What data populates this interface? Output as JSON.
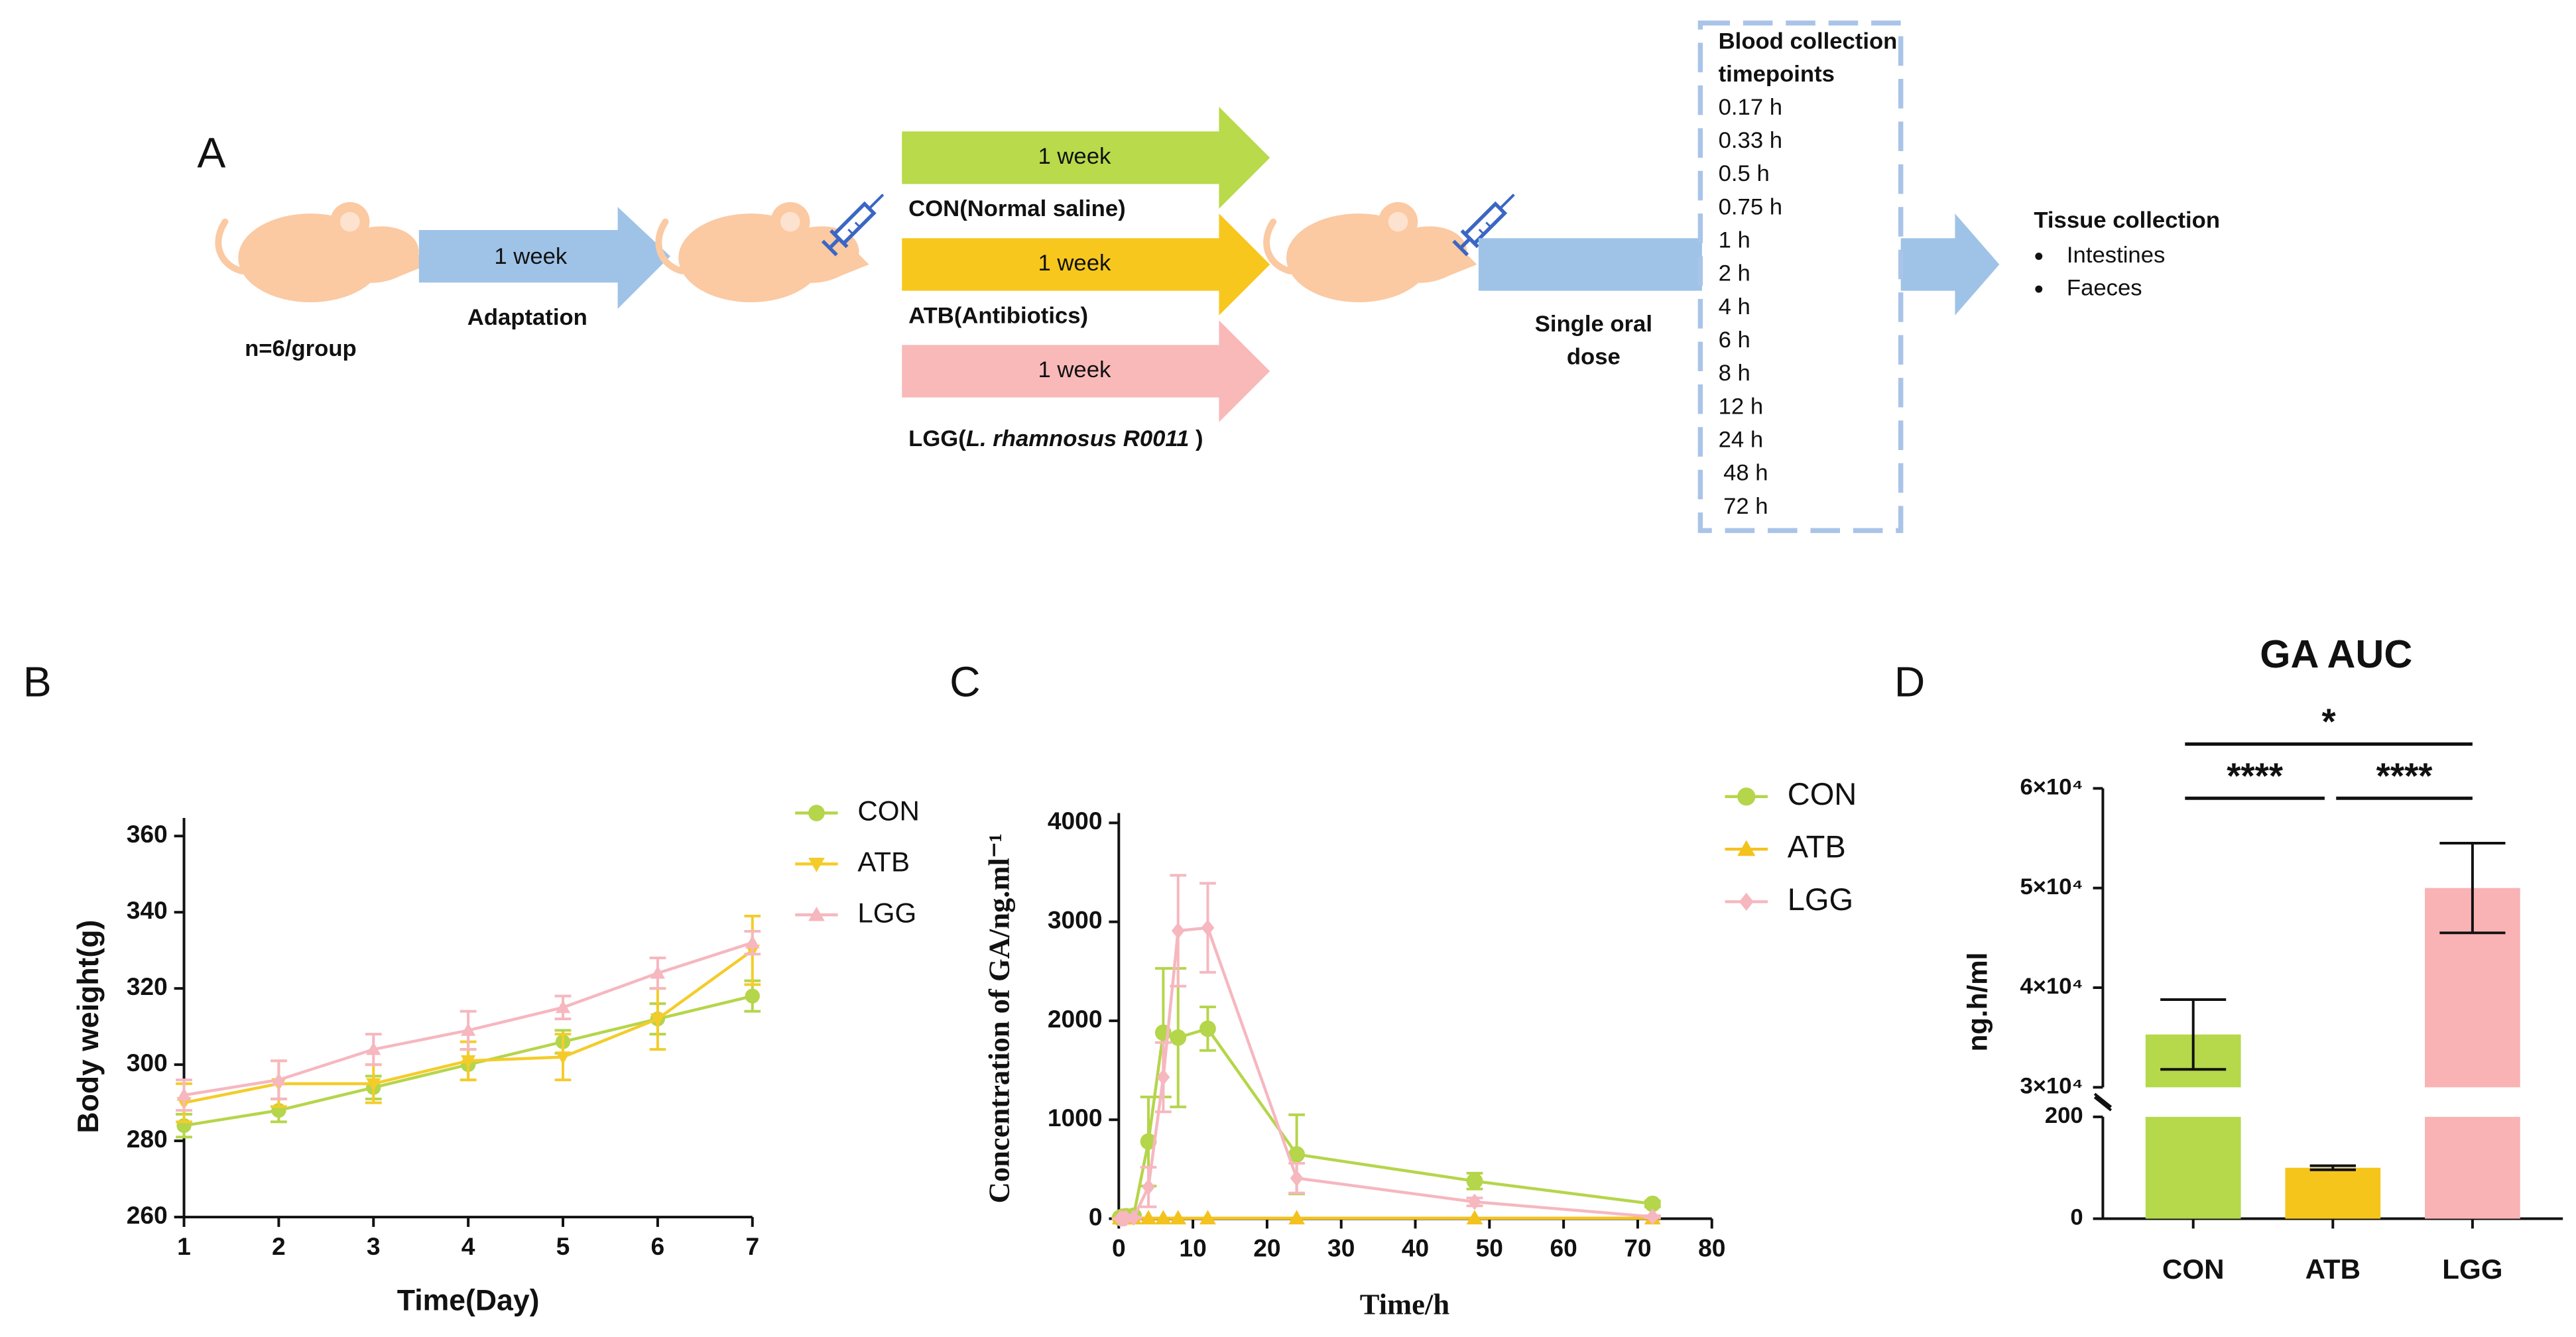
{
  "panel_labels": [
    "A",
    "B",
    "C",
    "D"
  ],
  "diagram": {
    "group_size": "n=6/group",
    "adaptation_arrow": "1 week",
    "adaptation": "Adaptation",
    "treatments": [
      {
        "arrow": "1 week",
        "label": [
          "CON(Normal saline)"
        ],
        "color": "#b8da4b"
      },
      {
        "arrow": "1 week",
        "label": [
          "ATB(Antibiotics)"
        ],
        "color": "#f7c71d"
      },
      {
        "arrow": "1 week",
        "label": [
          "LGG(",
          "L. rhamnosus R0011",
          " )"
        ],
        "color": "#f9b9b9"
      }
    ],
    "dose": [
      "Single oral",
      "dose"
    ],
    "blood_title": [
      "Blood collection",
      "timepoints"
    ],
    "timepoints": [
      "0.17 h",
      "0.33 h",
      "0.5 h",
      "0.75 h",
      "1 h",
      "2 h",
      "4 h",
      "6 h",
      "8 h",
      "12 h",
      "24 h",
      "48 h",
      "72 h"
    ],
    "tissue_title": "Tissue collection",
    "tissues": [
      "Intestines",
      "Faeces"
    ]
  },
  "chart_data": [
    {
      "type": "line",
      "xlabel": "Time(Day)",
      "ylabel": "Body weight(g)",
      "x": [
        1,
        2,
        3,
        4,
        5,
        6,
        7
      ],
      "xlim": [
        1,
        7
      ],
      "xticks": [
        1,
        2,
        3,
        4,
        5,
        6,
        7
      ],
      "ylim": [
        260,
        360
      ],
      "yticks": [
        260,
        280,
        300,
        320,
        340,
        360
      ],
      "legend": "upper right",
      "series": [
        {
          "name": "CON",
          "color": "#b5d54a",
          "marker": "circle",
          "values": [
            284,
            288,
            294,
            300,
            306,
            312,
            318
          ],
          "errors": [
            3,
            3,
            3,
            4,
            3,
            4,
            4
          ]
        },
        {
          "name": "ATB",
          "color": "#f4cc2a",
          "marker": "triangle-down",
          "values": [
            290,
            295,
            295,
            301,
            302,
            312,
            330
          ],
          "errors": [
            5,
            6,
            5,
            5,
            6,
            8,
            9
          ]
        },
        {
          "name": "LGG",
          "color": "#f6b7bf",
          "marker": "triangle-up",
          "values": [
            292,
            296,
            304,
            309,
            315,
            324,
            332
          ],
          "errors": [
            4,
            5,
            4,
            5,
            3,
            4,
            3
          ]
        }
      ]
    },
    {
      "type": "line",
      "xlabel": "Time/h",
      "ylabel": "Concentration of GA/ng.ml⁻¹",
      "x": [
        0.17,
        0.33,
        0.5,
        0.75,
        1,
        2,
        4,
        6,
        8,
        12,
        24,
        48,
        72
      ],
      "xlim": [
        0,
        80
      ],
      "xticks": [
        0,
        10,
        20,
        30,
        40,
        50,
        60,
        70,
        80
      ],
      "ylim": [
        0,
        4000
      ],
      "yticks": [
        0,
        1000,
        2000,
        3000,
        4000
      ],
      "legend": "upper right",
      "series": [
        {
          "name": "CON",
          "color": "#b5d54a",
          "marker": "circle",
          "values": [
            10,
            15,
            20,
            20,
            25,
            30,
            780,
            1880,
            1830,
            1920,
            650,
            380,
            150
          ],
          "errors": [
            5,
            5,
            5,
            5,
            5,
            10,
            450,
            650,
            700,
            220,
            400,
            80,
            30
          ]
        },
        {
          "name": "ATB",
          "color": "#f4c21d",
          "marker": "triangle-up",
          "values": [
            5,
            5,
            5,
            5,
            5,
            5,
            5,
            5,
            5,
            5,
            5,
            5,
            5
          ],
          "errors": [
            0,
            0,
            0,
            0,
            0,
            0,
            0,
            0,
            0,
            0,
            0,
            0,
            0
          ]
        },
        {
          "name": "LGG",
          "color": "#f6b7bf",
          "marker": "diamond",
          "values": [
            0,
            0,
            0,
            0,
            5,
            10,
            320,
            1430,
            2910,
            2940,
            410,
            170,
            20
          ],
          "errors": [
            0,
            0,
            0,
            0,
            0,
            5,
            200,
            350,
            560,
            450,
            150,
            40,
            10
          ]
        }
      ]
    },
    {
      "type": "bar",
      "title": "GA AUC",
      "ylabel": "ng.h/ml",
      "categories": [
        "CON",
        "ATB",
        "LGG"
      ],
      "values": [
        35300,
        100,
        50000
      ],
      "errors": [
        3500,
        4,
        4500
      ],
      "colors": [
        "#b5d94a",
        "#f6c51b",
        "#f9b3b5"
      ],
      "ylim_lower": [
        0,
        200
      ],
      "yticks_lower": [
        0,
        200
      ],
      "ylim_upper": [
        30000,
        60000
      ],
      "yticks_upper": [
        {
          "value": 30000,
          "label": "3×10⁴"
        },
        {
          "value": 40000,
          "label": "4×10⁴"
        },
        {
          "value": 50000,
          "label": "5×10⁴"
        },
        {
          "value": 60000,
          "label": "6×10⁴"
        }
      ],
      "significance": [
        {
          "pair": [
            "CON",
            "LGG"
          ],
          "label": "*"
        },
        {
          "pair": [
            "CON",
            "ATB"
          ],
          "label": "****"
        },
        {
          "pair": [
            "ATB",
            "LGG"
          ],
          "label": "****"
        }
      ]
    }
  ]
}
